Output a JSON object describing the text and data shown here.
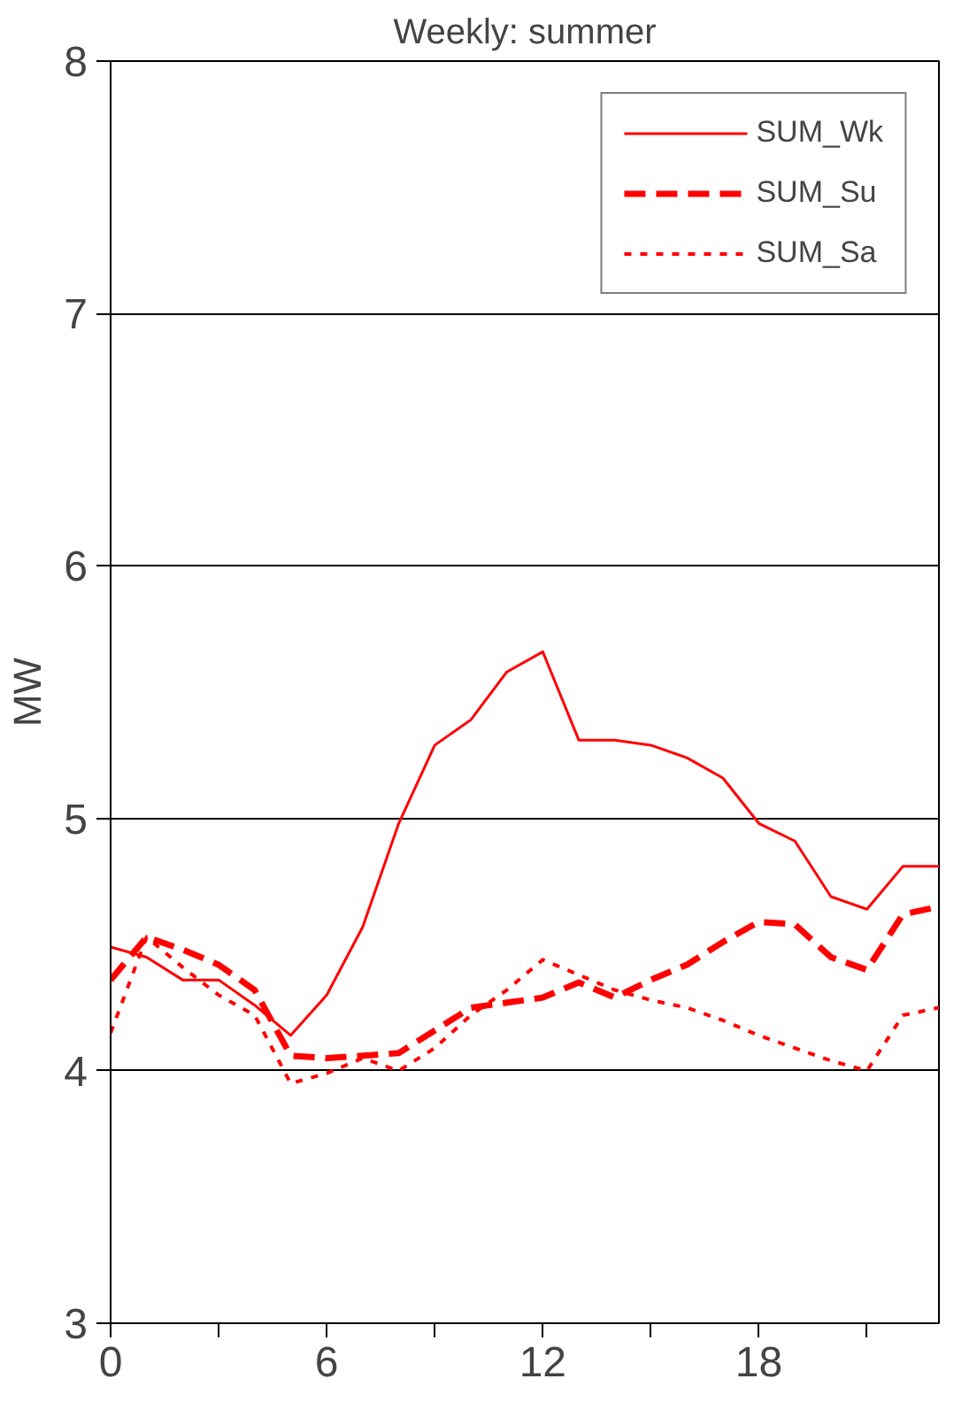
{
  "chart_data": {
    "type": "line",
    "title": "Weekly: summer",
    "ylabel": "MW",
    "x": [
      0,
      1,
      2,
      3,
      4,
      5,
      6,
      7,
      8,
      9,
      10,
      11,
      12,
      13,
      14,
      15,
      16,
      17,
      18,
      19,
      20,
      21,
      22,
      23
    ],
    "series": [
      {
        "name": "SUM_Wk",
        "color": "#ff0000",
        "line_style": "solid",
        "values": [
          4.49,
          4.45,
          4.36,
          4.36,
          4.26,
          4.14,
          4.3,
          4.57,
          4.98,
          5.29,
          5.39,
          5.58,
          5.66,
          5.31,
          5.31,
          5.29,
          5.24,
          5.16,
          4.98,
          4.91,
          4.69,
          4.64,
          4.81,
          4.81
        ]
      },
      {
        "name": "SUM_Su",
        "color": "#ff0000",
        "line_style": "dashed",
        "values": [
          4.36,
          4.53,
          4.48,
          4.42,
          4.32,
          4.06,
          4.05,
          4.06,
          4.07,
          4.16,
          4.25,
          4.27,
          4.29,
          4.35,
          4.29,
          4.36,
          4.42,
          4.51,
          4.59,
          4.58,
          4.45,
          4.4,
          4.62,
          4.65
        ]
      },
      {
        "name": "SUM_Sa",
        "color": "#ff0000",
        "line_style": "dotted",
        "values": [
          4.15,
          4.53,
          4.41,
          4.3,
          4.22,
          3.95,
          3.99,
          4.05,
          4.0,
          4.09,
          4.22,
          4.32,
          4.44,
          4.38,
          4.32,
          4.28,
          4.25,
          4.2,
          4.14,
          4.09,
          4.04,
          4.0,
          4.22,
          4.25
        ]
      }
    ],
    "xlim": [
      0,
      23
    ],
    "ylim": [
      3,
      8
    ],
    "xticks": [
      0,
      {
        "value": 3,
        "label": null
      },
      6,
      {
        "value": 9,
        "label": null
      },
      12,
      {
        "value": 15,
        "label": null
      },
      18,
      {
        "value": 21,
        "label": null
      }
    ],
    "yticks": [
      3,
      4,
      5,
      6,
      7,
      8
    ],
    "grid": "y",
    "legend": "top right",
    "marker": "none"
  }
}
